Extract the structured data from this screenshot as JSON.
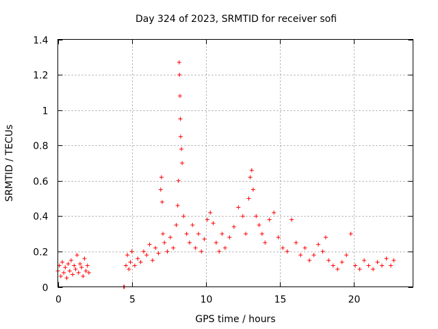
{
  "chart_data": {
    "type": "scatter",
    "title": "Day 324 of 2023, SRMTID for receiver sofi",
    "xlabel": "GPS time / hours",
    "ylabel": "SRMTID / TECUs",
    "xlim": [
      0,
      24
    ],
    "ylim": [
      0,
      1.4
    ],
    "xticks": [
      0,
      5,
      10,
      15,
      20
    ],
    "xtick_labels": [
      "0",
      "5",
      "10",
      "15",
      "20"
    ],
    "yticks": [
      0,
      0.2,
      0.4,
      0.6,
      0.8,
      1.0,
      1.2,
      1.4
    ],
    "ytick_labels": [
      "0",
      "0.2",
      "0.4",
      "0.6",
      "0.8",
      "1",
      "1.2",
      "1.4"
    ],
    "grid": true,
    "marker": "+",
    "color": "#ff0000",
    "series": [
      {
        "name": "SRMTID",
        "x": [
          0.0,
          0.1,
          0.2,
          0.3,
          0.4,
          0.5,
          0.6,
          0.7,
          0.8,
          0.9,
          1.0,
          1.1,
          1.2,
          1.3,
          1.4,
          1.5,
          1.6,
          1.7,
          1.8,
          1.9,
          2.0,
          2.1,
          4.45,
          4.5,
          4.6,
          4.7,
          4.8,
          4.9,
          5.0,
          5.2,
          5.4,
          5.6,
          5.8,
          6.0,
          6.2,
          6.4,
          6.6,
          6.8,
          6.95,
          7.0,
          7.05,
          7.1,
          7.2,
          7.4,
          7.6,
          7.8,
          8.0,
          8.1,
          8.15,
          8.2,
          8.22,
          8.25,
          8.28,
          8.3,
          8.35,
          8.4,
          8.5,
          8.7,
          8.9,
          9.1,
          9.3,
          9.5,
          9.7,
          9.9,
          10.1,
          10.3,
          10.5,
          10.7,
          10.9,
          11.1,
          11.3,
          11.6,
          11.9,
          12.2,
          12.5,
          12.7,
          12.9,
          13.0,
          13.1,
          13.2,
          13.4,
          13.6,
          13.8,
          14.0,
          14.3,
          14.6,
          14.9,
          15.2,
          15.5,
          15.8,
          16.1,
          16.4,
          16.7,
          17.0,
          17.3,
          17.6,
          17.9,
          18.1,
          18.3,
          18.6,
          18.9,
          19.2,
          19.5,
          19.8,
          20.1,
          20.4,
          20.7,
          21.0,
          21.3,
          21.6,
          21.9,
          22.2,
          22.5,
          22.7
        ],
        "y": [
          0.09,
          0.12,
          0.06,
          0.14,
          0.08,
          0.11,
          0.05,
          0.13,
          0.09,
          0.15,
          0.07,
          0.12,
          0.1,
          0.18,
          0.08,
          0.13,
          0.11,
          0.06,
          0.16,
          0.09,
          0.12,
          0.08,
          0.0,
          0.0,
          0.12,
          0.18,
          0.1,
          0.14,
          0.2,
          0.12,
          0.16,
          0.14,
          0.2,
          0.18,
          0.24,
          0.15,
          0.22,
          0.19,
          0.55,
          0.62,
          0.48,
          0.3,
          0.25,
          0.2,
          0.28,
          0.22,
          0.35,
          0.46,
          0.6,
          1.27,
          1.2,
          1.08,
          0.95,
          0.85,
          0.78,
          0.7,
          0.4,
          0.3,
          0.25,
          0.35,
          0.22,
          0.3,
          0.2,
          0.27,
          0.38,
          0.42,
          0.36,
          0.25,
          0.2,
          0.3,
          0.22,
          0.28,
          0.34,
          0.45,
          0.4,
          0.3,
          0.5,
          0.62,
          0.66,
          0.55,
          0.4,
          0.35,
          0.3,
          0.25,
          0.38,
          0.42,
          0.28,
          0.22,
          0.2,
          0.38,
          0.25,
          0.18,
          0.22,
          0.15,
          0.18,
          0.24,
          0.2,
          0.28,
          0.15,
          0.12,
          0.1,
          0.14,
          0.18,
          0.3,
          0.12,
          0.1,
          0.15,
          0.12,
          0.1,
          0.14,
          0.12,
          0.16,
          0.12,
          0.15
        ]
      }
    ]
  }
}
